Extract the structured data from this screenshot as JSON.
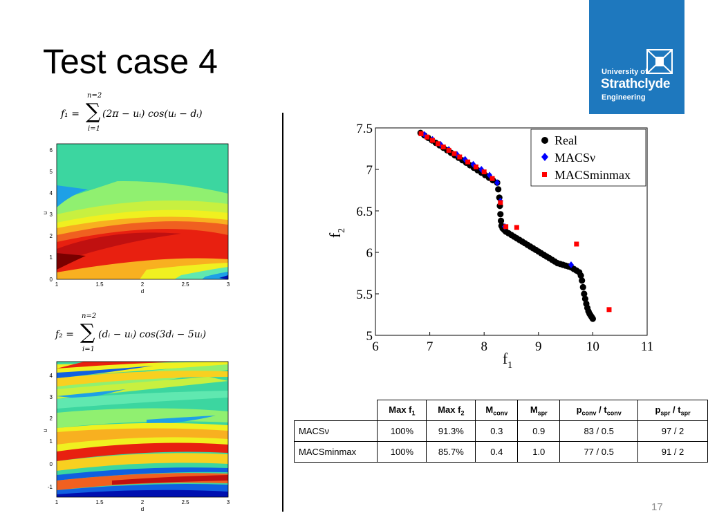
{
  "slide": {
    "title": "Test case 4",
    "page_number": "17",
    "logo": {
      "line1": "University of",
      "line2": "Strathclyde",
      "line3": "Engineering"
    }
  },
  "formulas": {
    "f1": {
      "lhs": "f₁ =",
      "upper": "n=2",
      "lower": "i=1",
      "body": "(2π − uᵢ) cos(uᵢ − dᵢ)"
    },
    "f2": {
      "lhs": "f₂ =",
      "upper": "n=2",
      "lower": "i=1",
      "body": "(dᵢ − uᵢ) cos(3dᵢ − 5uᵢ)"
    }
  },
  "contour1": {
    "xlabel": "d",
    "ylabel": "u",
    "xticks": [
      "1",
      "1.5",
      "2",
      "2.5",
      "3"
    ],
    "yticks": [
      "0",
      "1",
      "2",
      "3",
      "4",
      "5",
      "6"
    ]
  },
  "contour2": {
    "xlabel": "d",
    "ylabel": "u",
    "xticks": [
      "1",
      "1.5",
      "2",
      "2.5",
      "3"
    ],
    "yticks": [
      "-1",
      "0",
      "1",
      "2",
      "3",
      "4"
    ]
  },
  "chart_data": {
    "type": "scatter",
    "xlabel": "f1",
    "ylabel": "f2",
    "xlim": [
      6,
      11
    ],
    "ylim": [
      5,
      7.5
    ],
    "xticks": [
      "6",
      "7",
      "8",
      "9",
      "10",
      "11"
    ],
    "yticks": [
      "5",
      "5.5",
      "6",
      "6.5",
      "7",
      "7.5"
    ],
    "legend_position": "top-right",
    "series": [
      {
        "name": "Real",
        "color": "#000000",
        "marker": "circle",
        "x": [
          6.83,
          6.9,
          6.97,
          7.04,
          7.11,
          7.18,
          7.25,
          7.32,
          7.39,
          7.46,
          7.53,
          7.6,
          7.67,
          7.74,
          7.81,
          7.88,
          7.95,
          8.02,
          8.09,
          8.16,
          8.24,
          8.26,
          8.28,
          8.29,
          8.3,
          8.31,
          8.32,
          8.34,
          8.37,
          8.4,
          8.45,
          8.5,
          8.55,
          8.6,
          8.65,
          8.7,
          8.75,
          8.8,
          8.85,
          8.9,
          8.95,
          9.0,
          9.05,
          9.1,
          9.15,
          9.2,
          9.25,
          9.3,
          9.35,
          9.4,
          9.45,
          9.5,
          9.55,
          9.6,
          9.65,
          9.7,
          9.75,
          9.78,
          9.8,
          9.82,
          9.84,
          9.86,
          9.88,
          9.9,
          9.92,
          9.94,
          9.96,
          9.98,
          10.0
        ],
        "y": [
          7.44,
          7.41,
          7.38,
          7.35,
          7.32,
          7.29,
          7.26,
          7.23,
          7.2,
          7.17,
          7.14,
          7.11,
          7.08,
          7.05,
          7.02,
          6.99,
          6.96,
          6.93,
          6.9,
          6.87,
          6.84,
          6.76,
          6.66,
          6.56,
          6.46,
          6.38,
          6.32,
          6.29,
          6.27,
          6.25,
          6.23,
          6.21,
          6.19,
          6.17,
          6.15,
          6.13,
          6.11,
          6.09,
          6.07,
          6.05,
          6.03,
          6.01,
          5.99,
          5.97,
          5.95,
          5.93,
          5.91,
          5.89,
          5.87,
          5.86,
          5.85,
          5.84,
          5.83,
          5.82,
          5.8,
          5.78,
          5.76,
          5.72,
          5.66,
          5.58,
          5.5,
          5.44,
          5.38,
          5.33,
          5.29,
          5.26,
          5.24,
          5.22,
          5.2
        ]
      },
      {
        "name": "MACSν",
        "color": "#0000ff",
        "marker": "diamond",
        "x": [
          6.9,
          7.05,
          7.2,
          7.35,
          7.5,
          7.65,
          7.8,
          7.95,
          8.1,
          8.24,
          8.3,
          8.38,
          9.6
        ],
        "y": [
          7.42,
          7.36,
          7.3,
          7.24,
          7.18,
          7.12,
          7.06,
          7.0,
          6.93,
          6.84,
          6.62,
          6.31,
          5.85
        ]
      },
      {
        "name": "MACSminmax",
        "color": "#ff0000",
        "marker": "square",
        "x": [
          6.84,
          6.95,
          7.05,
          7.15,
          7.25,
          7.35,
          7.45,
          7.55,
          7.7,
          7.85,
          8.0,
          8.15,
          8.3,
          8.4,
          8.6,
          9.7,
          10.3
        ],
        "y": [
          7.43,
          7.39,
          7.35,
          7.31,
          7.27,
          7.23,
          7.19,
          7.15,
          7.09,
          7.03,
          6.97,
          6.89,
          6.6,
          6.31,
          6.3,
          6.1,
          5.31
        ]
      }
    ]
  },
  "results_table": {
    "headers": [
      "",
      "Max f",
      "Max f",
      "M",
      "M",
      "p",
      "p"
    ],
    "header_subs": [
      "",
      "1",
      "2",
      "conv",
      "spr",
      "conv",
      "spr"
    ],
    "header_tails": [
      "",
      "",
      "",
      "",
      "",
      " / t",
      " / t"
    ],
    "header_tail_subs": [
      "",
      "",
      "",
      "",
      "",
      "conv",
      "spr"
    ],
    "rows": [
      [
        "MACSν",
        "100%",
        "91.3%",
        "0.3",
        "0.9",
        "83 / 0.5",
        "97 / 2"
      ],
      [
        "MACSminmax",
        "100%",
        "85.7%",
        "0.4",
        "1.0",
        "77 / 0.5",
        "91 / 2"
      ]
    ]
  }
}
